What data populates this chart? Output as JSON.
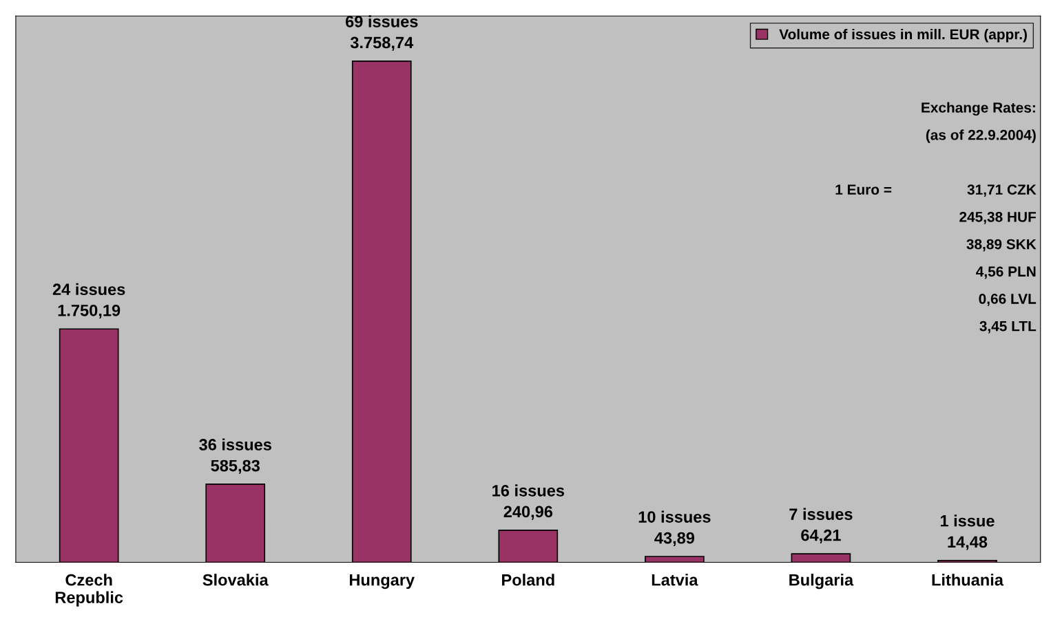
{
  "chart_data": {
    "type": "bar",
    "categories": [
      "Czech Republic",
      "Slovakia",
      "Hungary",
      "Poland",
      "Latvia",
      "Bulgaria",
      "Lithuania"
    ],
    "series": [
      {
        "name": "Volume of issues in mill. EUR (appr.)",
        "color": "#993366",
        "values": [
          1750.19,
          585.83,
          3758.74,
          240.96,
          43.89,
          64.21,
          14.48
        ],
        "value_labels": [
          "24 issues\n1.750,19",
          "36 issues\n585,83",
          "69 issues\n3.758,74",
          "16 issues\n240,96",
          "10 issues\n43,89",
          "7 issues\n64,21",
          "1 issue\n14,48"
        ]
      }
    ],
    "legend": "top right",
    "grid": false,
    "annotations": [
      "Exchange Rates:",
      "(as of 22.9.2004)",
      "1 Euro =",
      "31,71 CZK",
      "245,38 HUF",
      "38,89 SKK",
      "4,56 PLN",
      "0,66 LVL",
      "3,45 LTL"
    ]
  }
}
